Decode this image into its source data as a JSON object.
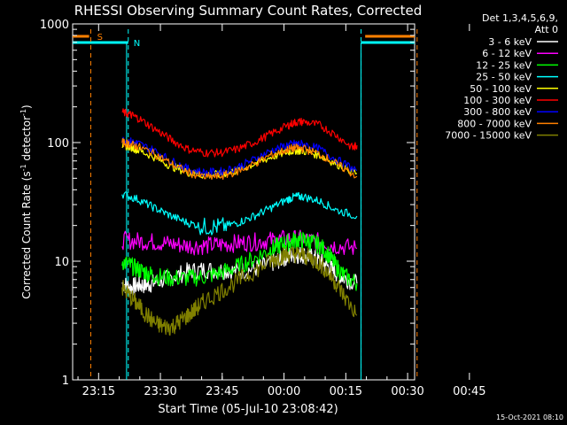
{
  "chart_data": {
    "type": "line",
    "title": "RHESSI Observing Summary Count Rates, Corrected",
    "xlabel": "Start Time (05-Jul-10 23:08:42)",
    "ylabel": "Corrected Count Rate (s⁻¹ detector⁻¹)",
    "ylabel_parts": [
      "Corrected Count Rate (s",
      "-1",
      " detector",
      "-1",
      ")"
    ],
    "yscale": "log",
    "ylim": [
      1,
      1000
    ],
    "xlim_minutes": [
      0,
      83
    ],
    "x_ticks": [
      {
        "label": "23:15",
        "minute": 6.3
      },
      {
        "label": "23:30",
        "minute": 21.3
      },
      {
        "label": "23:45",
        "minute": 36.3
      },
      {
        "label": "00:00",
        "minute": 51.3
      },
      {
        "label": "00:15",
        "minute": 66.3
      },
      {
        "label": "00:30",
        "minute": 81.3
      },
      {
        "label": "00:45",
        "minute": 96.3
      }
    ],
    "y_ticks": [
      {
        "label": "1",
        "value": 1
      },
      {
        "label": "10",
        "value": 10
      },
      {
        "label": "100",
        "value": 100
      },
      {
        "label": "1000",
        "value": 1000
      }
    ],
    "legend_header": [
      "Det 1,3,4,5,6,9,",
      "Att 0"
    ],
    "series": [
      {
        "name": "3 - 6 keV",
        "color": "#ffffff",
        "x": [
          12,
          14,
          16,
          18,
          20,
          24,
          28,
          32,
          36,
          40,
          44,
          48,
          50,
          52,
          54,
          56,
          58,
          60,
          62,
          64,
          66,
          69
        ],
        "values": [
          6.5,
          6,
          6.3,
          6.3,
          6.6,
          7.3,
          8.2,
          8.5,
          8.4,
          8.2,
          8.6,
          9.5,
          10.2,
          11,
          11.3,
          11.3,
          10.8,
          10,
          9,
          8,
          7.2,
          6.5
        ]
      },
      {
        "name": "6 - 12 keV",
        "color": "#ff00ff",
        "x": [
          12,
          16,
          20,
          24,
          28,
          32,
          36,
          40,
          44,
          48,
          52,
          56,
          60,
          64,
          69
        ],
        "values": [
          15,
          14.8,
          14.5,
          14,
          13.5,
          13.5,
          13.8,
          14.2,
          14.5,
          15,
          15.5,
          15.3,
          14.5,
          13.5,
          12.8
        ]
      },
      {
        "name": "12 - 25 keV",
        "color": "#00ff00",
        "x": [
          12,
          14,
          16,
          18,
          20,
          24,
          28,
          32,
          36,
          40,
          44,
          48,
          50,
          52,
          54,
          56,
          58,
          60,
          62,
          64,
          66,
          69
        ],
        "values": [
          10,
          9.2,
          8.5,
          8,
          7.5,
          7.2,
          7.2,
          7.4,
          8,
          9,
          10.5,
          12.5,
          13.5,
          14.3,
          15,
          15,
          14.5,
          13.5,
          11.5,
          9,
          7.5,
          6.5
        ]
      },
      {
        "name": "25 - 50 keV",
        "color": "#00ffff",
        "x": [
          12,
          16,
          20,
          24,
          28,
          32,
          36,
          40,
          44,
          48,
          52,
          54,
          56,
          60,
          64,
          69
        ],
        "values": [
          37,
          33,
          28,
          24,
          21,
          19.5,
          19.5,
          21,
          24,
          28,
          33,
          35,
          35,
          32,
          27,
          24
        ]
      },
      {
        "name": "50 - 100 keV",
        "color": "#ffff00",
        "x": [
          12,
          14,
          16,
          20,
          24,
          28,
          32,
          36,
          40,
          44,
          48,
          52,
          54,
          56,
          60,
          64,
          69
        ],
        "values": [
          95,
          92,
          86,
          75,
          63,
          56,
          53,
          54,
          58,
          66,
          75,
          83,
          86,
          85,
          78,
          66,
          55
        ]
      },
      {
        "name": "100 - 300 keV",
        "color": "#ff0000",
        "x": [
          12,
          14,
          16,
          20,
          24,
          28,
          32,
          36,
          40,
          44,
          48,
          52,
          54,
          56,
          60,
          64,
          68,
          69
        ],
        "values": [
          180,
          172,
          160,
          130,
          105,
          88,
          82,
          82,
          88,
          100,
          118,
          138,
          148,
          150,
          140,
          115,
          90,
          95
        ]
      },
      {
        "name": "300 - 800 keV",
        "color": "#0000ff",
        "x": [
          12,
          14,
          16,
          20,
          24,
          28,
          32,
          36,
          40,
          44,
          48,
          52,
          54,
          56,
          60,
          64,
          69
        ],
        "values": [
          105,
          102,
          98,
          85,
          70,
          60,
          56,
          57,
          62,
          72,
          85,
          95,
          98,
          97,
          88,
          72,
          58
        ]
      },
      {
        "name": "800 - 7000 keV",
        "color": "#ff8000",
        "x": [
          12,
          14,
          16,
          20,
          24,
          28,
          32,
          36,
          40,
          44,
          48,
          52,
          54,
          56,
          60,
          64,
          69
        ],
        "values": [
          100,
          97,
          92,
          80,
          66,
          56,
          51,
          52,
          57,
          66,
          78,
          87,
          90,
          89,
          80,
          66,
          52
        ]
      },
      {
        "name": "7000 - 15000 keV",
        "color": "#808000",
        "x": [
          12,
          14,
          16,
          18,
          20,
          22,
          24,
          26,
          28,
          30,
          32,
          36,
          40,
          44,
          48,
          50,
          52,
          54,
          56,
          58,
          60,
          62,
          64,
          66,
          69
        ],
        "values": [
          6,
          5,
          4.2,
          3.5,
          3,
          2.8,
          2.8,
          3.1,
          3.5,
          4,
          4.6,
          5.6,
          6.8,
          8.2,
          10,
          10.8,
          11.4,
          11.5,
          11.2,
          10.5,
          9.5,
          8,
          6.5,
          5,
          3.5
        ]
      }
    ],
    "annotations": [
      {
        "label": "S",
        "color": "#ff8000",
        "kind": "saa"
      },
      {
        "label": "N",
        "color": "#00ffff",
        "kind": "night"
      }
    ],
    "saa_segments": [
      [
        -1,
        4
      ],
      [
        71,
        84
      ]
    ],
    "night_segments": [
      [
        -1,
        13.5
      ],
      [
        70,
        84
      ]
    ],
    "vlines_orange": [
      4.4,
      83.6
    ],
    "vlines_cyan": [
      13.5,
      70
    ]
  },
  "footer": {
    "timestamp": "15-Oct-2021 08:10"
  }
}
